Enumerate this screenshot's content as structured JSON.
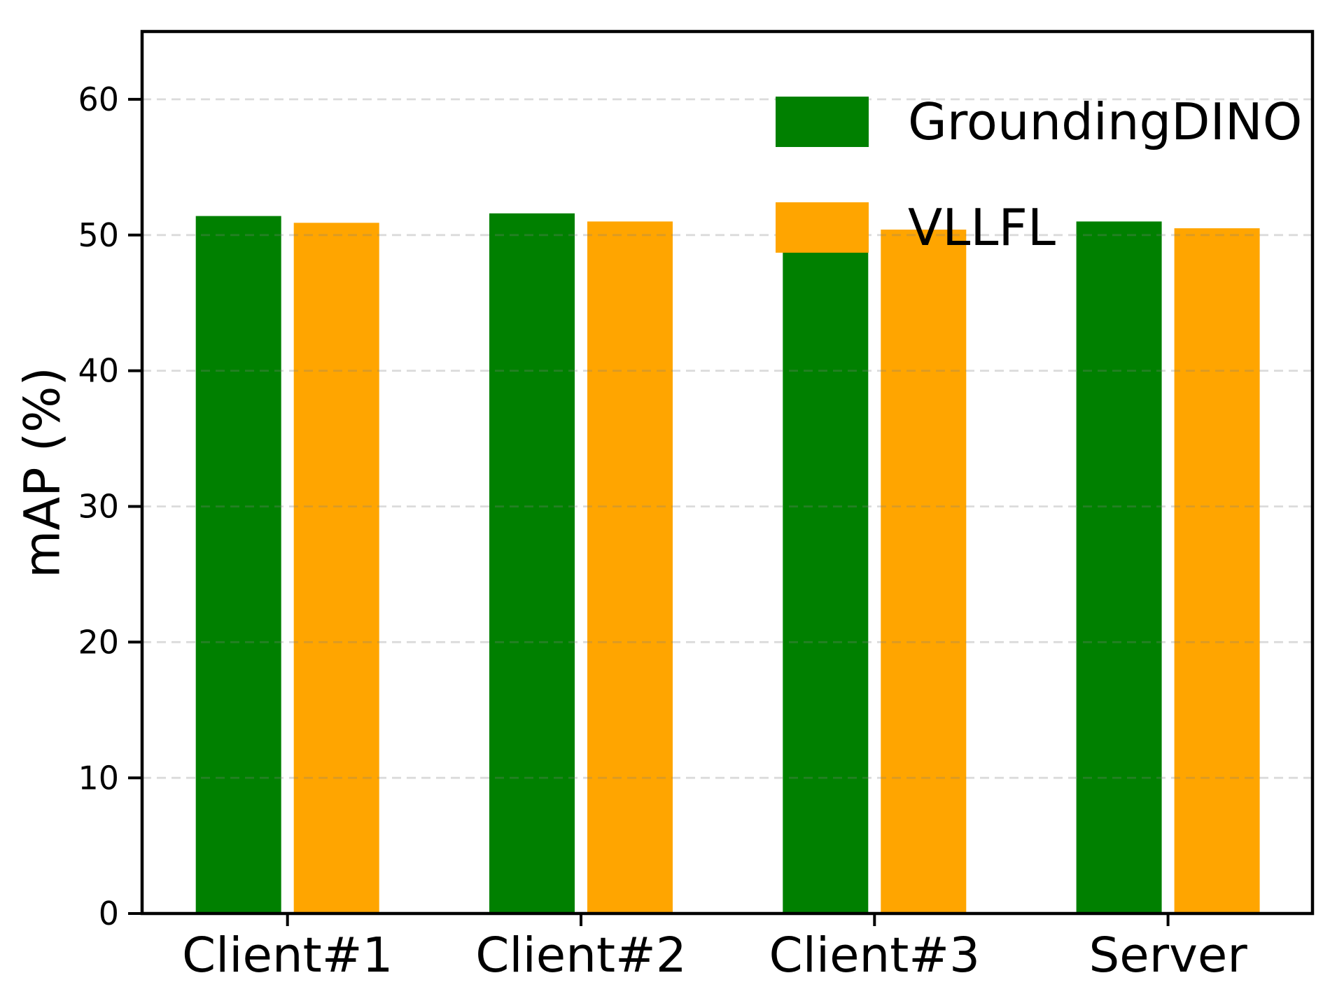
{
  "figure": {
    "background": "#ffffff"
  },
  "chart_data": {
    "type": "bar",
    "categories": [
      "Client#1",
      "Client#2",
      "Client#3",
      "Server"
    ],
    "series": [
      {
        "name": "GroundingDINO",
        "color": "#008000",
        "values": [
          51.4,
          51.6,
          51.2,
          51.0
        ]
      },
      {
        "name": "VLLFL",
        "color": "#FFA500",
        "values": [
          50.9,
          51.0,
          50.4,
          50.5
        ]
      }
    ],
    "title": "",
    "xlabel": "",
    "ylabel": "mAP (%)",
    "ylim": [
      0,
      65
    ],
    "yticks": [
      0,
      10,
      20,
      30,
      40,
      50,
      60
    ],
    "ytick_labels": [
      "0",
      "10",
      "20",
      "30",
      "40",
      "50",
      "60"
    ],
    "grid": "horizontal-dashed",
    "grid_on": true,
    "grid_above_bars": true,
    "legend_position": "upper-right",
    "legend_frame": false,
    "colors": {
      "axis": "#000000",
      "grid": "#808080",
      "text": "#000000",
      "background": "#ffffff"
    }
  }
}
